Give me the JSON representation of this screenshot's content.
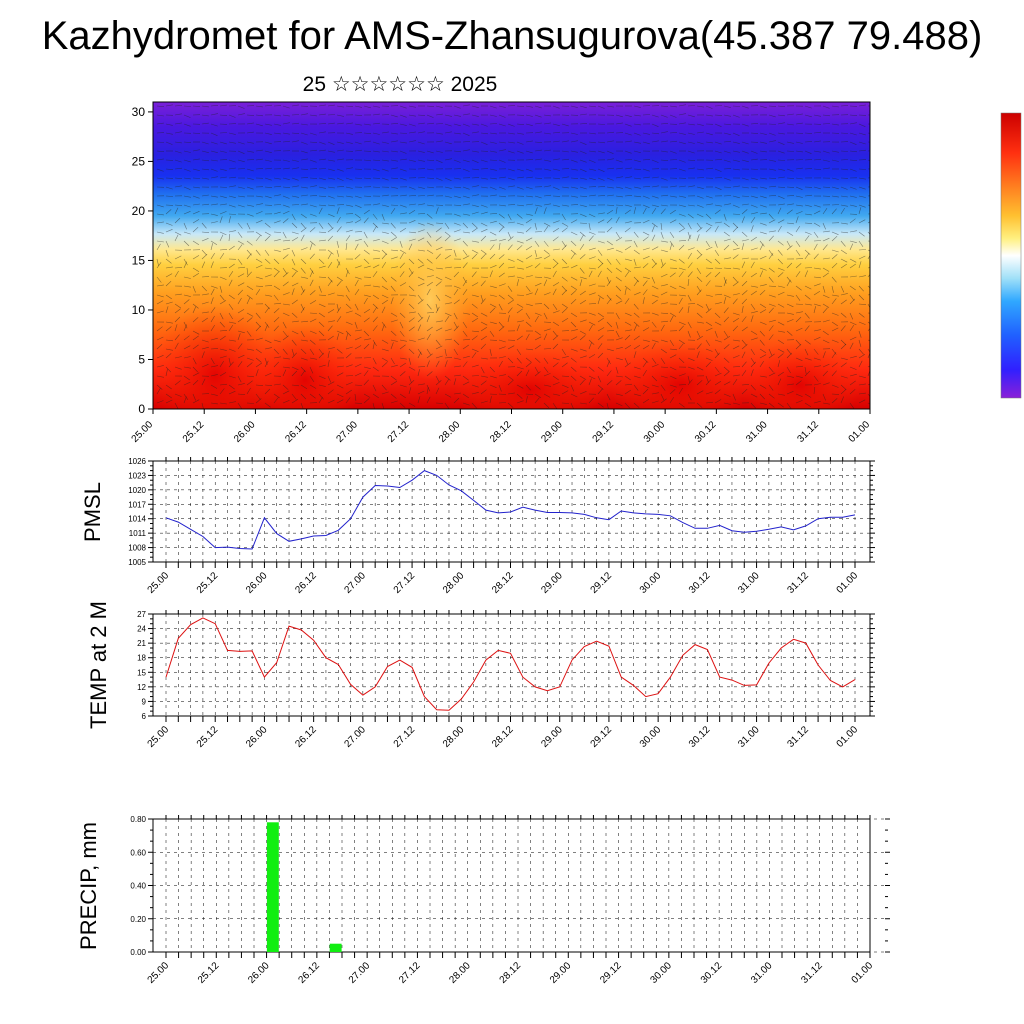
{
  "title": "Kazhydromet for AMS-Zhansugurova(45.387 79.488)",
  "subtitle": "25 ☆☆☆☆☆☆ 2025",
  "colors": {
    "pmsl_line": "#2222cc",
    "temp_line": "#dd1111",
    "precip_bar": "#11ee11",
    "colorbar": [
      "#7b1fd8",
      "#4a10e8",
      "#2020ff",
      "#2060ff",
      "#30a0ff",
      "#80d0f0",
      "#d0eef8",
      "#fff0a0",
      "#ffd040",
      "#ffa020",
      "#ff6010",
      "#ff2010",
      "#d00000"
    ]
  },
  "chart_data": [
    {
      "type": "heatmap",
      "name": "cross-section",
      "x_ticks": [
        "25.00",
        "25.12",
        "26.00",
        "26.12",
        "27.00",
        "27.12",
        "28.00",
        "28.12",
        "29.00",
        "29.12",
        "30.00",
        "30.12",
        "31.00",
        "31.12",
        "01.00"
      ],
      "y_ticks": [
        "0",
        "5",
        "10",
        "15",
        "20",
        "25",
        "30"
      ],
      "ylim": [
        0,
        31
      ],
      "colorbar": true
    },
    {
      "type": "line",
      "ylabel": "PMSL",
      "x_ticks": [
        "25.00",
        "25.12",
        "26.00",
        "26.12",
        "27.00",
        "27.12",
        "28.00",
        "28.12",
        "29.00",
        "29.12",
        "30.00",
        "30.12",
        "31.00",
        "31.12",
        "01.00"
      ],
      "y_ticks": [
        "1005",
        "1008",
        "1011",
        "1014",
        "1017",
        "1020",
        "1023",
        "1026"
      ],
      "ylim": [
        1005,
        1026
      ],
      "values": [
        1014.2,
        1013.3,
        1011.8,
        1010.3,
        1008.0,
        1008.1,
        1007.8,
        1007.7,
        1014.2,
        1010.9,
        1009.3,
        1009.8,
        1010.4,
        1010.5,
        1011.6,
        1014.0,
        1018.5,
        1020.9,
        1020.8,
        1020.5,
        1022.0,
        1024.0,
        1023.0,
        1021.0,
        1019.8,
        1017.8,
        1015.8,
        1015.2,
        1015.4,
        1016.4,
        1015.8,
        1015.3,
        1015.3,
        1015.2,
        1014.9,
        1014.2,
        1013.8,
        1015.6,
        1015.2,
        1015.0,
        1014.9,
        1014.6,
        1013.2,
        1012.0,
        1012.0,
        1012.6,
        1011.5,
        1011.2,
        1011.4,
        1011.8,
        1012.3,
        1011.7,
        1012.5,
        1014.0,
        1014.3,
        1014.3,
        1014.8
      ]
    },
    {
      "type": "line",
      "ylabel": "TEMP at 2 M",
      "x_ticks": [
        "25.00",
        "25.12",
        "26.00",
        "26.12",
        "27.00",
        "27.12",
        "28.00",
        "28.12",
        "29.00",
        "29.12",
        "30.00",
        "30.12",
        "31.00",
        "31.12",
        "01.00"
      ],
      "y_ticks": [
        "6",
        "9",
        "12",
        "15",
        "18",
        "21",
        "24",
        "27"
      ],
      "ylim": [
        6,
        27
      ],
      "values": [
        14.0,
        22.0,
        24.8,
        26.2,
        25.0,
        19.5,
        19.3,
        19.4,
        14.0,
        17.0,
        24.5,
        23.7,
        21.6,
        18.0,
        16.6,
        12.5,
        10.3,
        12.0,
        16.2,
        17.5,
        16.0,
        10.0,
        7.3,
        7.2,
        9.5,
        13.0,
        17.5,
        19.5,
        18.9,
        14.0,
        12.0,
        11.2,
        12.0,
        17.5,
        20.3,
        21.4,
        20.4,
        14.0,
        12.3,
        10.0,
        10.6,
        14.0,
        18.5,
        20.7,
        19.7,
        14.0,
        13.4,
        12.3,
        12.4,
        16.9,
        20.0,
        21.8,
        21.0,
        16.5,
        13.3,
        12.0,
        13.5
      ]
    },
    {
      "type": "bar",
      "ylabel": "PRECIP, mm",
      "x_ticks": [
        "25.00",
        "25.12",
        "26.00",
        "26.12",
        "27.00",
        "27.12",
        "28.00",
        "28.12",
        "29.00",
        "29.12",
        "30.00",
        "30.12",
        "31.00",
        "31.12",
        "01.00"
      ],
      "y_ticks": [
        "0.00",
        "0.20",
        "0.40",
        "0.60",
        "0.80"
      ],
      "ylim": [
        0,
        0.8
      ],
      "bars": [
        {
          "t": 8.5,
          "value": 0.78
        },
        {
          "t": 13.5,
          "value": 0.05
        }
      ]
    }
  ]
}
